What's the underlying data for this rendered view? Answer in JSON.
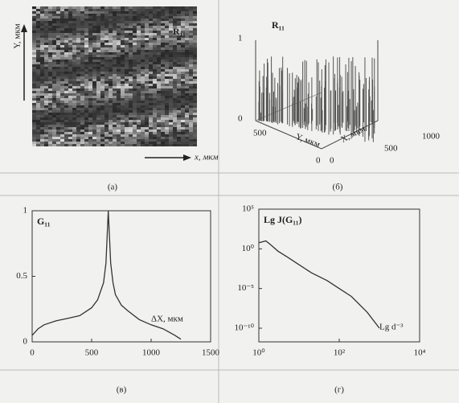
{
  "panel_a": {
    "label": "R₁₁",
    "y_axis": "Y, мкм",
    "x_axis": "x, мкм",
    "caption": "(а)"
  },
  "panel_b": {
    "label": "R₁₁",
    "z_ticks": [
      "1",
      "0"
    ],
    "y_ticks": [
      "500",
      "0"
    ],
    "x_ticks": [
      "0",
      "500",
      "1000"
    ],
    "y_axis": "Y, мкм",
    "x_axis": "X, мкм",
    "caption": "(б)"
  },
  "chart_data": [
    {
      "type": "line",
      "label": "G₁₁",
      "annotation": "ΔX, мкм",
      "caption": "(в)",
      "x": [
        0,
        50,
        100,
        200,
        300,
        400,
        500,
        550,
        600,
        620,
        640,
        660,
        680,
        700,
        750,
        800,
        900,
        1000,
        1100,
        1200,
        1250
      ],
      "values": [
        0.05,
        0.1,
        0.13,
        0.16,
        0.18,
        0.2,
        0.26,
        0.32,
        0.45,
        0.6,
        1.0,
        0.6,
        0.45,
        0.36,
        0.28,
        0.24,
        0.17,
        0.13,
        0.1,
        0.05,
        0.02
      ],
      "color": "#333333",
      "xlim": [
        0,
        1500
      ],
      "xticks": [
        0,
        500,
        1000,
        1500
      ],
      "ylim": [
        0,
        1
      ],
      "yticks": [
        0,
        0.5,
        1
      ]
    },
    {
      "type": "line",
      "label": "Lg J(G₁₁)",
      "annotation": "Lg d⁻³",
      "caption": "(г)",
      "x": [
        1,
        1.5,
        2,
        3,
        5,
        10,
        20,
        50,
        100,
        200,
        500,
        1000
      ],
      "values": [
        6,
        10,
        3,
        0.5,
        0.1,
        0.01,
        0.001,
        0.0001,
        1e-05,
        1e-06,
        1e-08,
        1e-10
      ],
      "color": "#333333",
      "xscale": "log",
      "yscale": "log",
      "xlim": [
        1,
        10000
      ],
      "xticks": [
        {
          "value": 1,
          "label": "10⁰"
        },
        {
          "value": 100,
          "label": "10²"
        },
        {
          "value": 10000,
          "label": "10⁴"
        }
      ],
      "ylim": [
        1.9e-12,
        100000
      ],
      "yticks": [
        {
          "value": 100000,
          "label": "10⁵"
        },
        {
          "value": 1,
          "label": "10⁰"
        },
        {
          "value": 1e-05,
          "label": "10⁻⁵"
        },
        {
          "value": 1e-10,
          "label": "10⁻¹⁰"
        }
      ]
    }
  ]
}
